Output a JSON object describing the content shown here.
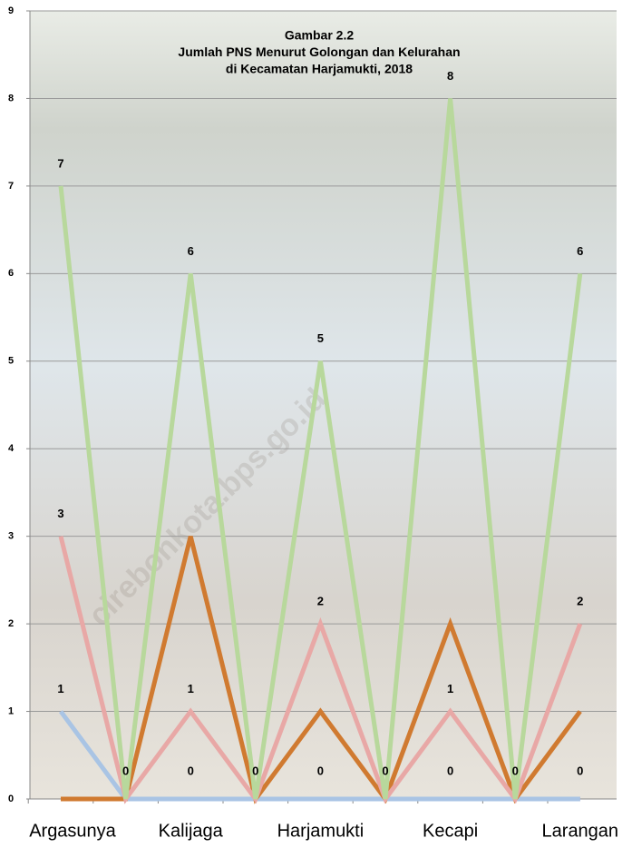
{
  "chart_data": {
    "type": "line",
    "title_lines": [
      "Gambar 2.2",
      "Jumlah PNS Menurut Golongan dan Kelurahan",
      "di Kecamatan Harjamukti, 2018"
    ],
    "watermark": "cirebonkota.bps.go.id",
    "categories": [
      "Argasunya",
      null,
      "Kalijaga",
      null,
      "Harjamukti",
      null,
      "Kecapi",
      null,
      "Larangan"
    ],
    "ylim": [
      0,
      9
    ],
    "yticks": [
      0,
      1,
      2,
      3,
      4,
      5,
      6,
      7,
      8,
      9
    ],
    "grid": true,
    "series": [
      {
        "color": "#b8a8d0",
        "values": [
          0,
          0,
          0,
          0,
          0,
          0,
          0,
          0,
          0
        ],
        "label_points": [
          2,
          4,
          6,
          8
        ]
      },
      {
        "color": "#a9c4e4",
        "values": [
          1,
          0,
          0,
          0,
          0,
          0,
          0,
          0,
          0
        ],
        "label_points": [
          0
        ]
      },
      {
        "color": "#d07a30",
        "values": [
          0,
          0,
          3,
          0,
          1,
          0,
          2,
          0,
          1
        ],
        "label_points": []
      },
      {
        "color": "#e8a8a6",
        "values": [
          3,
          0,
          1,
          0,
          2,
          0,
          1,
          0,
          2
        ],
        "label_points": [
          0,
          2,
          4,
          6,
          8
        ]
      },
      {
        "color": "#b8d89c",
        "values": [
          7,
          0,
          6,
          0,
          5,
          0,
          8,
          0,
          6
        ],
        "label_points": [
          0,
          1,
          2,
          3,
          4,
          5,
          6,
          7,
          8
        ]
      }
    ]
  }
}
